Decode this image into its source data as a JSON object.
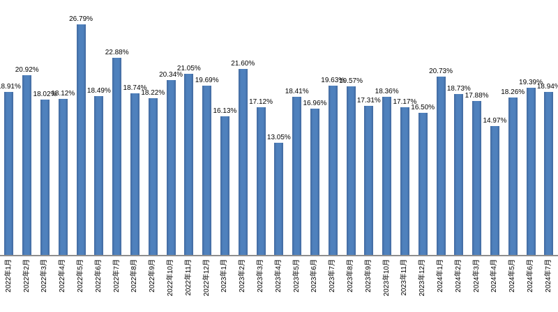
{
  "chart_data": {
    "type": "bar",
    "title": "",
    "xlabel": "",
    "ylabel": "",
    "categories": [
      "2022年1月",
      "2022年2月",
      "2022年3月",
      "2022年4月",
      "2022年5月",
      "2022年6月",
      "2022年7月",
      "2022年8月",
      "2022年9月",
      "2022年10月",
      "2022年11月",
      "2022年12月",
      "2023年1月",
      "2023年2月",
      "2023年3月",
      "2023年4月",
      "2023年5月",
      "2023年6月",
      "2023年7月",
      "2023年8月",
      "2023年9月",
      "2023年10月",
      "2023年11月",
      "2023年12月",
      "2024年1月",
      "2024年2月",
      "2024年3月",
      "2024年4月",
      "2024年5月",
      "2024年6月",
      "2024年7月"
    ],
    "values": [
      18.91,
      20.92,
      18.02,
      18.12,
      26.79,
      18.49,
      22.88,
      18.74,
      18.22,
      20.34,
      21.05,
      19.69,
      16.13,
      21.6,
      17.12,
      13.05,
      18.41,
      16.96,
      19.63,
      19.57,
      17.31,
      18.36,
      17.17,
      16.5,
      20.73,
      18.73,
      17.88,
      14.97,
      18.26,
      19.39,
      18.94
    ],
    "data_labels": [
      "18.91%",
      "20.92%",
      "18.02%",
      "18.12%",
      "26.79%",
      "18.49%",
      "22.88%",
      "18.74%",
      "18.22%",
      "20.34%",
      "21.05%",
      "19.69%",
      "16.13%",
      "21.60%",
      "17.12%",
      "13.05%",
      "18.41%",
      "16.96%",
      "19.63%",
      "19.57%",
      "17.31%",
      "18.36%",
      "17.17%",
      "16.50%",
      "20.73%",
      "18.73%",
      "17.88%",
      "14.97%",
      "18.26%",
      "19.39%",
      "18.94%"
    ],
    "ylim": [
      0,
      29.6
    ],
    "grid": false,
    "y_axis_visible": false,
    "legend_position": "none",
    "x_tick_rotation_deg": 90,
    "colors": {
      "bar": "#4f81bd",
      "bar_edge": "#41699f",
      "axis_line": "#8e8e8e",
      "label": "#000000",
      "background": "#ffffff"
    }
  }
}
